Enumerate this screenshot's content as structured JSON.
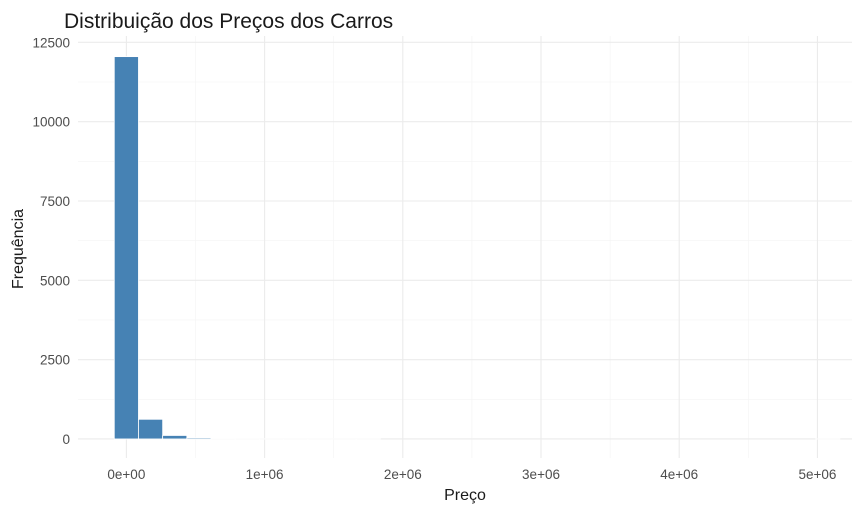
{
  "chart_data": {
    "type": "bar",
    "title": "Distribuição dos Preços dos Carros",
    "xlabel": "Preço",
    "ylabel": "Frequência",
    "bin_width": 175000,
    "x": [
      0,
      175000,
      350000,
      525000,
      700000,
      875000,
      1050000,
      1225000,
      1400000,
      1575000,
      1750000,
      1925000,
      2100000,
      2275000,
      2450000,
      2625000,
      2800000,
      2975000,
      3150000,
      3325000,
      3500000,
      3675000,
      3850000,
      4025000,
      4200000,
      4375000,
      4550000,
      4725000,
      4900000,
      5075000
    ],
    "values": [
      12050,
      620,
      110,
      35,
      10,
      5,
      3,
      2,
      1,
      1,
      1,
      0,
      0,
      0,
      0,
      0,
      0,
      0,
      0,
      0,
      0,
      0,
      0,
      0,
      0,
      0,
      0,
      0,
      0,
      1
    ],
    "xlim": [
      -350000,
      5250000
    ],
    "ylim": [
      -600,
      12700
    ],
    "x_ticks": [
      0,
      1000000,
      2000000,
      3000000,
      4000000,
      5000000
    ],
    "x_tick_labels": [
      "0e+00",
      "1e+06",
      "2e+06",
      "3e+06",
      "4e+06",
      "5e+06"
    ],
    "y_ticks": [
      0,
      2500,
      5000,
      7500,
      10000,
      12500
    ],
    "y_tick_labels": [
      "0",
      "2500",
      "5000",
      "7500",
      "10000",
      "12500"
    ],
    "grid": true,
    "legend": "none",
    "bar_color": "#4682B4",
    "bar_edge_color": "#FFFFFF",
    "grid_color": "#EBEBEB"
  }
}
